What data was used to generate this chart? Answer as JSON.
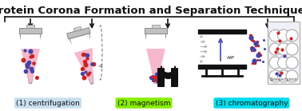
{
  "title": "Protein Corona Formation and Separation Techniques",
  "title_fontsize": 9.5,
  "title_fontweight": "bold",
  "title_color": "#111111",
  "bg_color": "#ffffff",
  "labels": [
    "(1) centrifugation",
    "(2) magnetism",
    "(3) chromatography"
  ],
  "label_colors": [
    "#c8dff0",
    "#88ee00",
    "#00ddee"
  ],
  "label_text_colors": [
    "#111111",
    "#111111",
    "#111111"
  ],
  "label_fontsize": 6.5,
  "arrow_color": "#111111",
  "fig_width": 3.78,
  "fig_height": 1.39,
  "dpi": 100,
  "tube_body_color": "#f5b8cc",
  "tube_cap_color": "#c0c0c0",
  "tube_edge_color": "#888888",
  "particle_blue": "#4444aa",
  "particle_red": "#cc2222",
  "magnet_color": "#111111",
  "channel_color": "#111111",
  "flow_arrow_color": "#aaaaaa",
  "bead_color": "#ffffff",
  "bead_edge_color": "#aaaaaa",
  "col_bg": "#f0f0f8"
}
